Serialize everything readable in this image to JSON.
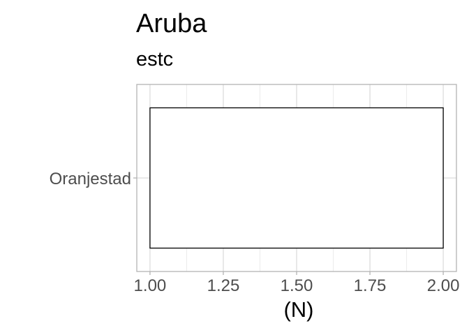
{
  "chart_data": {
    "type": "bar",
    "title": "Aruba",
    "subtitle": "estc",
    "xlabel": "(N)",
    "ylabel": "",
    "categories": [
      "Oranjestad"
    ],
    "series": [
      {
        "values": [
          [
            1.0,
            2.0
          ]
        ]
      }
    ],
    "xlim": [
      0.955,
      2.045
    ],
    "x_ticks": [
      1.0,
      1.25,
      1.5,
      1.75,
      2.0
    ],
    "x_tick_labels": [
      "1.00",
      "1.25",
      "1.50",
      "1.75",
      "2.00"
    ],
    "x_minor_ticks": [
      1.125,
      1.375,
      1.625,
      1.875
    ],
    "orientation": "horizontal",
    "grid": true,
    "legend": "none",
    "colors": {
      "bar_fill": "#ffffff",
      "bar_stroke": "#000000",
      "panel_border": "#b3b3b3",
      "grid_major": "#dcdcdc",
      "grid_minor": "#ebebeb",
      "tick_text": "#4d4d4d"
    }
  }
}
